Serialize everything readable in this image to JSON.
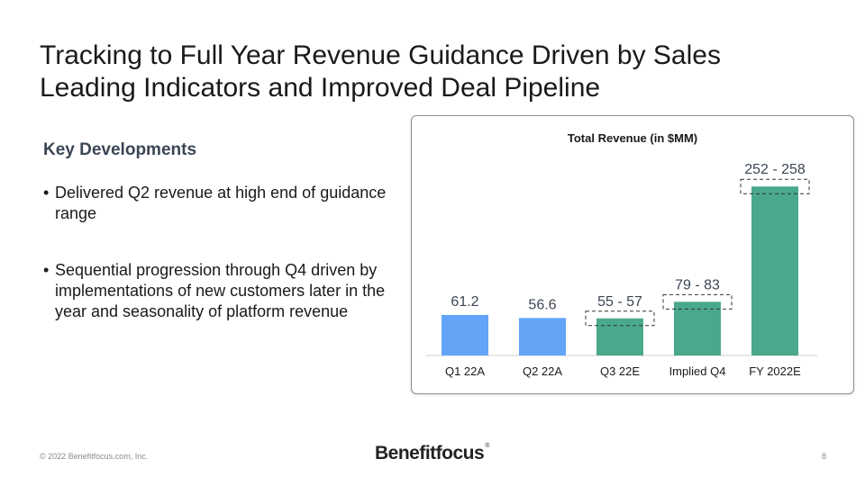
{
  "slide": {
    "title_line1": "Tracking to Full Year Revenue Guidance Driven by Sales",
    "title_line2": "Leading Indicators and Improved Deal Pipeline",
    "key_developments": {
      "heading": "Key Developments",
      "bullets": [
        "Delivered Q2 revenue at high end of guidance range",
        "Sequential progression through Q4 driven by implementations of new customers later in the year and seasonality of platform revenue"
      ]
    },
    "footer": {
      "copyright": "© 2022 Benefitfocus.com, Inc.",
      "logo_text": "Benefitfocus",
      "logo_mark": "®",
      "page_number": "8"
    }
  },
  "chart_data": {
    "type": "bar",
    "title": "Total Revenue (in $MM)",
    "categories": [
      "Q1 22A",
      "Q2 22A",
      "Q3 22E",
      "Implied Q4",
      "FY 2022E"
    ],
    "values": [
      61.2,
      56.6,
      56,
      81,
      255
    ],
    "ranges": [
      null,
      null,
      [
        55,
        57
      ],
      [
        79,
        83
      ],
      [
        252,
        258
      ]
    ],
    "labels": [
      "61.2",
      "56.6",
      "55 - 57",
      "79 - 83",
      "252 - 258"
    ],
    "kinds": [
      "actual",
      "actual",
      "estimate",
      "estimate",
      "estimate"
    ],
    "colors": {
      "actual": "#63a4f7",
      "estimate": "#4aa98d"
    },
    "xlabel": "",
    "ylabel": "",
    "ylim": [
      0,
      258
    ],
    "grid": false,
    "legend": "none"
  }
}
